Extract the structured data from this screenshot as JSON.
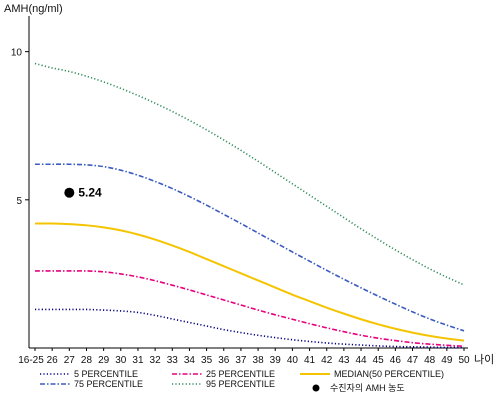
{
  "chart_data": {
    "type": "line",
    "ylabel": "AMH(ng/ml)",
    "xlabel": "나이",
    "ylim": [
      0,
      11
    ],
    "yticks": [
      5,
      10
    ],
    "x": [
      "16-25",
      "26",
      "27",
      "28",
      "29",
      "30",
      "31",
      "32",
      "33",
      "34",
      "35",
      "36",
      "37",
      "38",
      "39",
      "40",
      "41",
      "42",
      "43",
      "44",
      "45",
      "46",
      "47",
      "48",
      "49",
      "50"
    ],
    "series": [
      {
        "name": "5 PERCENTILE",
        "color": "#000080",
        "style": "dotted",
        "values": [
          1.3,
          1.3,
          1.3,
          1.3,
          1.28,
          1.25,
          1.2,
          1.1,
          0.98,
          0.86,
          0.74,
          0.62,
          0.52,
          0.43,
          0.35,
          0.28,
          0.22,
          0.17,
          0.13,
          0.1,
          0.07,
          0.05,
          0.04,
          0.03,
          0.02,
          0.02
        ]
      },
      {
        "name": "25 PERCENTILE",
        "color": "#e6007e",
        "style": "dashdot",
        "values": [
          2.6,
          2.6,
          2.6,
          2.6,
          2.57,
          2.5,
          2.4,
          2.27,
          2.12,
          1.96,
          1.79,
          1.62,
          1.45,
          1.28,
          1.12,
          0.97,
          0.82,
          0.68,
          0.55,
          0.43,
          0.33,
          0.25,
          0.18,
          0.13,
          0.09,
          0.06
        ]
      },
      {
        "name": "MEDIAN(50 PERCENTILE)",
        "color": "#f5c400",
        "style": "solid",
        "values": [
          4.2,
          4.2,
          4.18,
          4.14,
          4.07,
          3.97,
          3.83,
          3.66,
          3.46,
          3.24,
          3.0,
          2.76,
          2.52,
          2.28,
          2.04,
          1.8,
          1.58,
          1.36,
          1.16,
          0.97,
          0.8,
          0.65,
          0.52,
          0.41,
          0.32,
          0.25
        ]
      },
      {
        "name": "75 PERCENTILE",
        "color": "#3a5bbf",
        "style": "dashdot",
        "values": [
          6.2,
          6.2,
          6.2,
          6.18,
          6.12,
          6.0,
          5.83,
          5.62,
          5.38,
          5.11,
          4.82,
          4.51,
          4.2,
          3.88,
          3.56,
          3.24,
          2.93,
          2.62,
          2.32,
          2.03,
          1.75,
          1.48,
          1.22,
          0.98,
          0.77,
          0.58
        ]
      },
      {
        "name": "95 PERCENTILE",
        "color": "#2e8b57",
        "style": "dotted",
        "values": [
          9.6,
          9.45,
          9.33,
          9.17,
          8.98,
          8.76,
          8.52,
          8.26,
          7.98,
          7.68,
          7.36,
          7.02,
          6.67,
          6.3,
          5.92,
          5.54,
          5.16,
          4.78,
          4.4,
          4.02,
          3.66,
          3.31,
          2.98,
          2.67,
          2.39,
          2.13
        ]
      }
    ],
    "points": [
      {
        "name": "수진자의 AMH 농도",
        "x": "27",
        "y": 5.24,
        "label": "5.24",
        "color": "#000000"
      }
    ],
    "legend_position": "bottom",
    "grid": false
  }
}
